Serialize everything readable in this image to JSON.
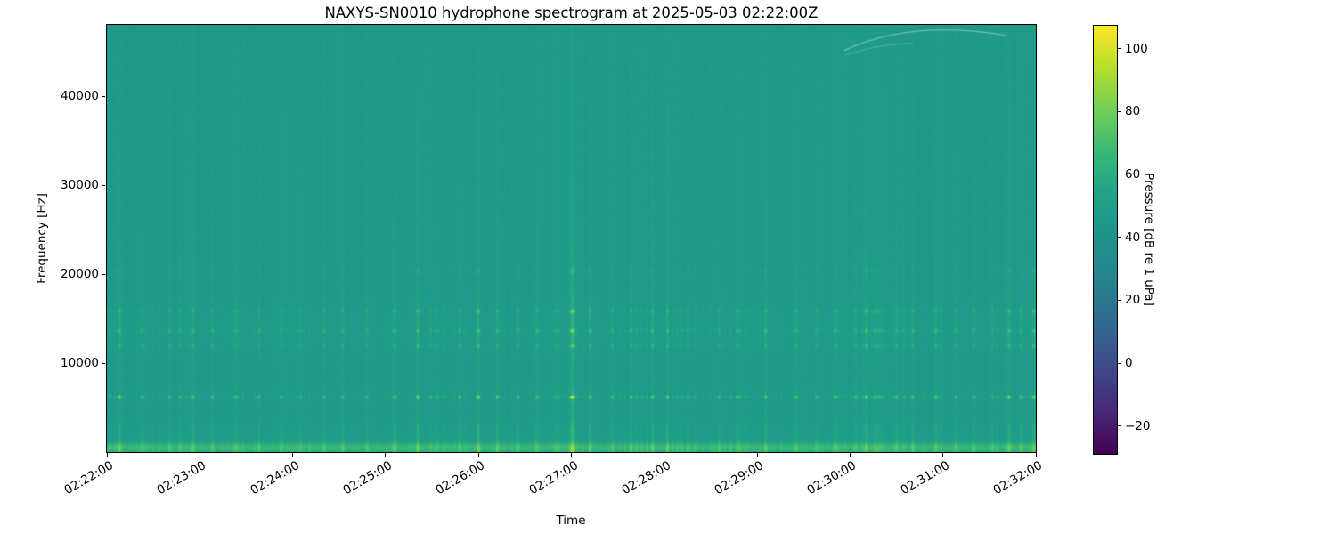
{
  "chart_data": {
    "type": "heatmap",
    "subtype": "spectrogram",
    "title": "NAXYS-SN0010 hydrophone spectrogram at 2025-05-03 02:22:00Z",
    "xlabel": "Time",
    "ylabel": "Frequency [Hz]",
    "x_ticks": [
      "02:22:00",
      "02:23:00",
      "02:24:00",
      "02:25:00",
      "02:26:00",
      "02:27:00",
      "02:28:00",
      "02:29:00",
      "02:30:00",
      "02:31:00",
      "02:32:00"
    ],
    "x_range_seconds": [
      0,
      600
    ],
    "y_ticks": [
      {
        "v": 10000,
        "label": "10000"
      },
      {
        "v": 20000,
        "label": "20000"
      },
      {
        "v": 30000,
        "label": "30000"
      },
      {
        "v": 40000,
        "label": "40000"
      }
    ],
    "y_range_hz": [
      0,
      48000
    ],
    "grid": false,
    "colorbar": {
      "label": "Pressure [dB re 1 uPa]",
      "ticks": [
        {
          "v": 100,
          "label": "100"
        },
        {
          "v": 80,
          "label": "80"
        },
        {
          "v": 60,
          "label": "60"
        },
        {
          "v": 40,
          "label": "40"
        },
        {
          "v": 20,
          "label": "20"
        },
        {
          "v": 0,
          "label": "0"
        },
        {
          "v": -20,
          "label": "−20"
        }
      ],
      "vmin": -28.5,
      "vmax": 107.5,
      "colormap": "viridis",
      "stops": [
        "#440154",
        "#482878",
        "#3e4989",
        "#31688e",
        "#26828e",
        "#21918c",
        "#1fa187",
        "#35b779",
        "#6ece58",
        "#b5de2b",
        "#fde725"
      ]
    },
    "spectrogram": {
      "background_db": 46.3,
      "noise_db": 0.9,
      "seed": 20250503,
      "click_train": {
        "min_interval_s": 1.2,
        "max_interval_s": 5.2,
        "amp_min_db": 2.5,
        "amp_max_db": 15.5
      },
      "bands_hz": [
        {
          "center": 6150,
          "sigma": 130,
          "weight": 1.0
        },
        {
          "center": 11900,
          "sigma": 180,
          "weight": 0.5
        },
        {
          "center": 13600,
          "sigma": 200,
          "weight": 0.55
        },
        {
          "center": 15800,
          "sigma": 230,
          "weight": 0.5
        },
        {
          "center": 20300,
          "sigma": 350,
          "weight": 0.25
        },
        {
          "center": 14000,
          "sigma": 2800,
          "weight": 0.13
        },
        {
          "center": 6200,
          "sigma": 800,
          "weight": 0.12
        },
        {
          "center": 2600,
          "sigma": 600,
          "weight": 0.18
        }
      ],
      "low_band": {
        "center_hz": 520,
        "sigma_hz": 430,
        "boost_db": 15,
        "floor_boost_db": 9,
        "floor_decay_hz": 1100
      },
      "events": [
        [
          2,
          14
        ],
        [
          8,
          26
        ],
        [
          22,
          14
        ],
        [
          40,
          18
        ],
        [
          55,
          15
        ],
        [
          68,
          20
        ],
        [
          84,
          15
        ],
        [
          98,
          17
        ],
        [
          112,
          15
        ],
        [
          125,
          16
        ],
        [
          140,
          15
        ],
        [
          152,
          18
        ],
        [
          168,
          15
        ],
        [
          185,
          16
        ],
        [
          200,
          15
        ],
        [
          212,
          18
        ],
        [
          228,
          16
        ],
        [
          240,
          24
        ],
        [
          252,
          22
        ],
        [
          265,
          16
        ],
        [
          278,
          15
        ],
        [
          290,
          16
        ],
        [
          300,
          43,
          2.2
        ],
        [
          312,
          20
        ],
        [
          326,
          16
        ],
        [
          338,
          24
        ],
        [
          352,
          26
        ],
        [
          362,
          22
        ],
        [
          375,
          16
        ],
        [
          395,
          18
        ],
        [
          408,
          15
        ],
        [
          425,
          20
        ],
        [
          445,
          18
        ],
        [
          458,
          16
        ],
        [
          470,
          22
        ],
        [
          483,
          16
        ],
        [
          490,
          26
        ],
        [
          498,
          14,
          5
        ],
        [
          510,
          16
        ],
        [
          520,
          18
        ],
        [
          535,
          16
        ],
        [
          548,
          20
        ],
        [
          560,
          16
        ],
        [
          572,
          16
        ],
        [
          582,
          26
        ],
        [
          590,
          22
        ],
        [
          598,
          20
        ]
      ],
      "arcs": [
        {
          "pts_tf": [
            [
              476,
              45100
            ],
            [
              524,
              47300
            ],
            [
              581,
              46800
            ]
          ],
          "alpha": 0.45
        },
        {
          "pts_tf": [
            [
              477,
              44600
            ],
            [
              500,
              45600
            ],
            [
              521,
              45900
            ]
          ],
          "alpha": 0.22
        }
      ]
    }
  }
}
